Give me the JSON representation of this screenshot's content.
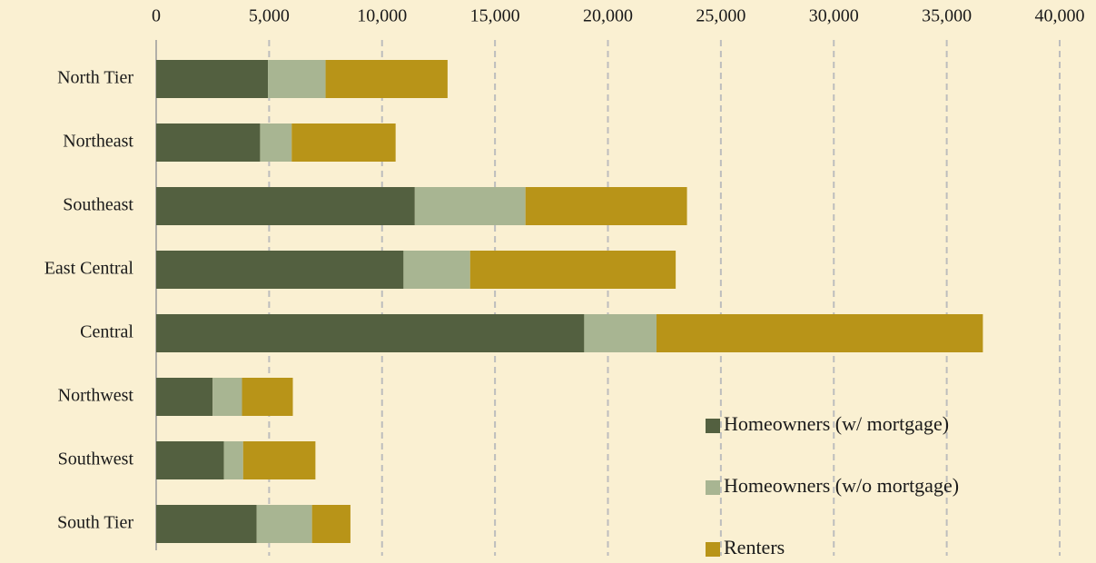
{
  "chart_data": {
    "type": "stacked-bar-horizontal",
    "categories": [
      "North Tier",
      "Northeast",
      "Southeast",
      "East Central",
      "Central",
      "Northwest",
      "Southwest",
      "South Tier"
    ],
    "series": [
      {
        "name": "Homeowners (w/ mortgage)",
        "color": "#536040",
        "values": [
          4950,
          4600,
          11450,
          10950,
          18950,
          2500,
          3000,
          4450
        ]
      },
      {
        "name": "Homeowners (w/o mortgage)",
        "color": "#a8b592",
        "values": [
          2550,
          1400,
          4900,
          2950,
          3200,
          1300,
          850,
          2450
        ]
      },
      {
        "name": "Renters",
        "color": "#b89418",
        "values": [
          5400,
          4600,
          7150,
          9100,
          14450,
          2250,
          3200,
          1700
        ]
      }
    ],
    "xlim": [
      0,
      40000
    ],
    "xticks": [
      0,
      {
        "value": 5000,
        "label": "5,000"
      },
      {
        "value": 10000,
        "label": "10,000"
      },
      {
        "value": 15000,
        "label": "15,000"
      },
      {
        "value": 20000,
        "label": "20,000"
      },
      {
        "value": 25000,
        "label": "25,000"
      },
      {
        "value": 30000,
        "label": "30,000"
      },
      {
        "value": 35000,
        "label": "35,000"
      },
      {
        "value": 40000,
        "label": "40,000"
      }
    ],
    "grid": true,
    "legend": "lower right"
  }
}
